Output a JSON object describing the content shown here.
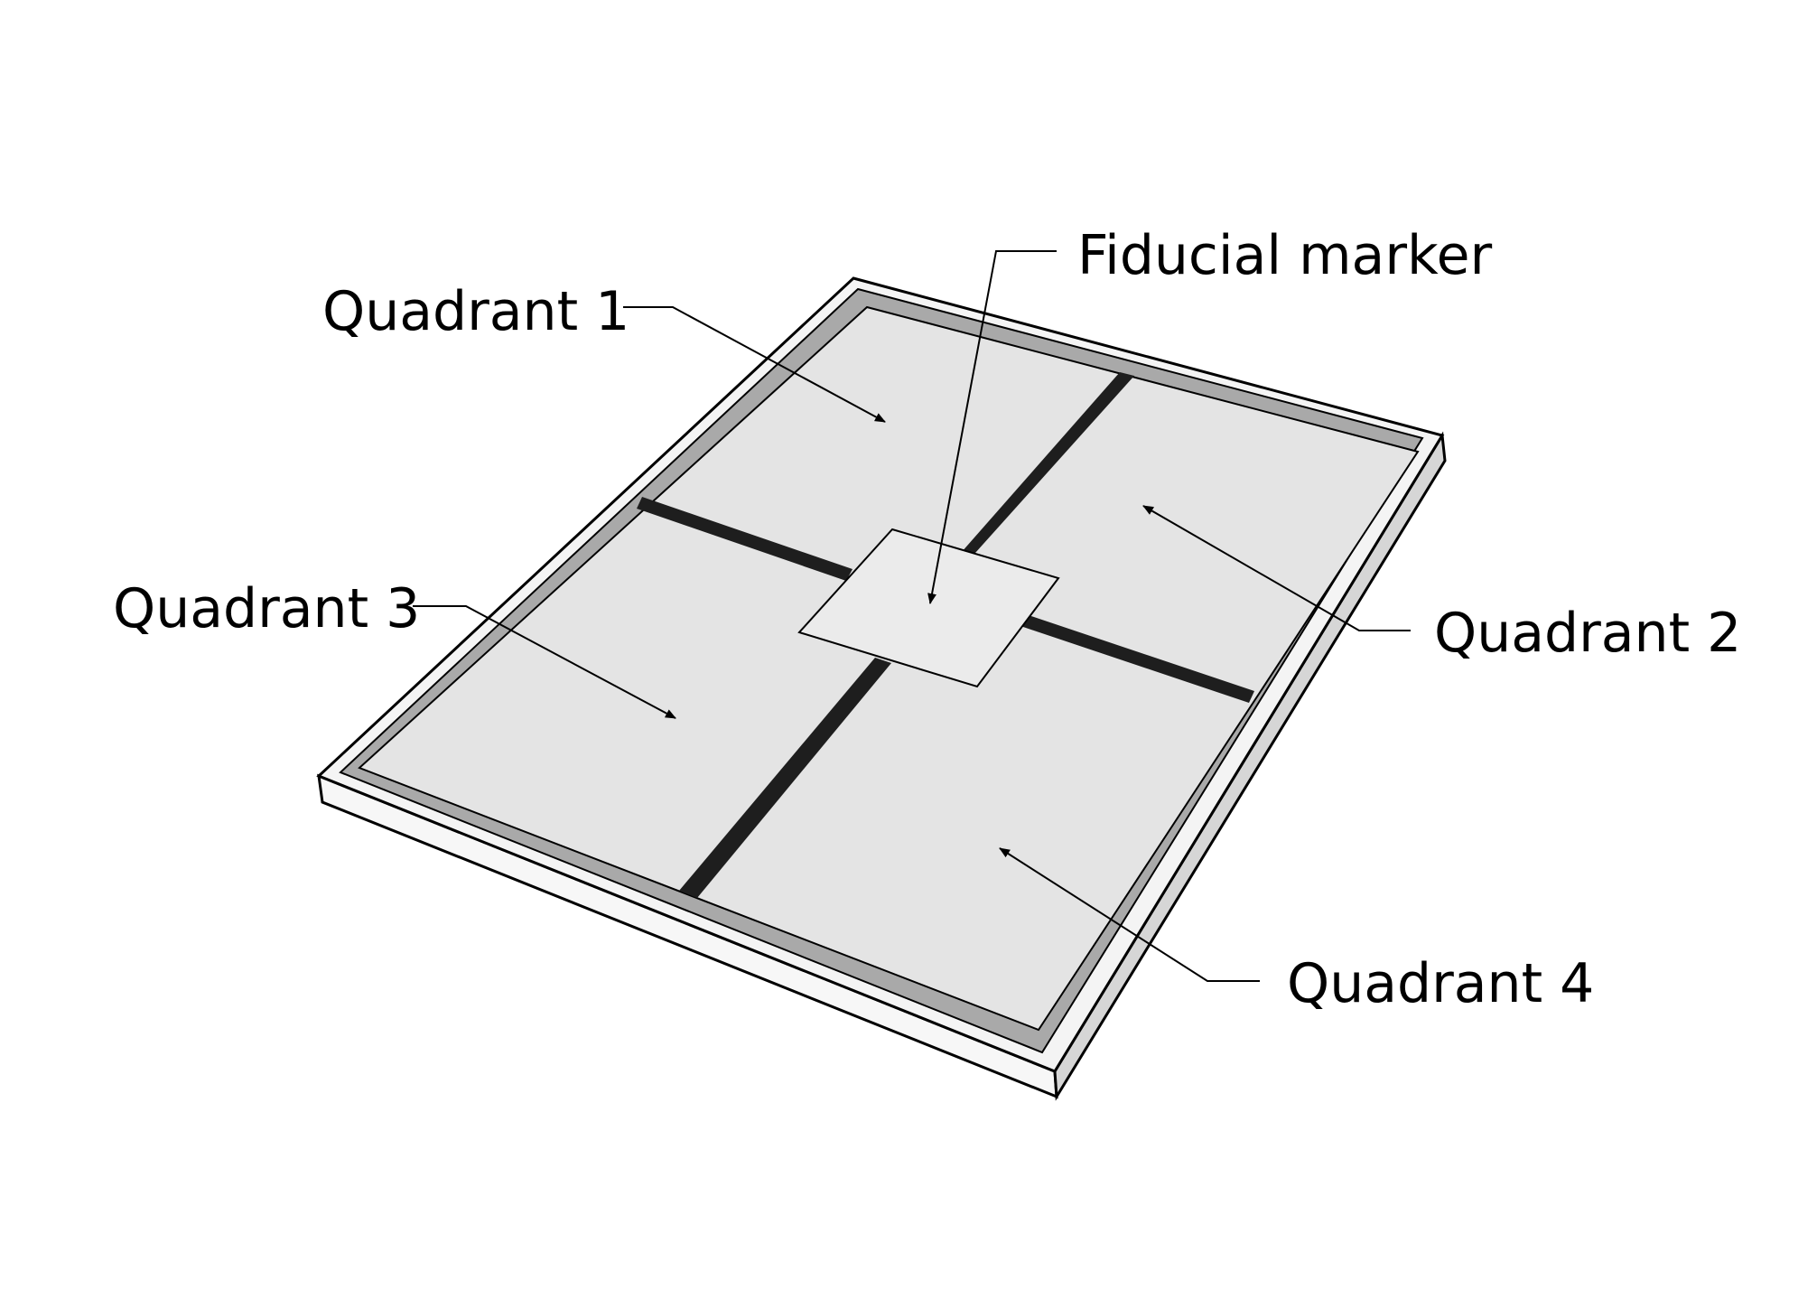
{
  "labels": {
    "fiducial_marker": "Fiducial marker",
    "quadrant_1": "Quadrant 1",
    "quadrant_2": "Quadrant 2",
    "quadrant_3": "Quadrant 3",
    "quadrant_4": "Quadrant 4"
  },
  "colors": {
    "background": "#ffffff",
    "tray_outer": "#f5f5f5",
    "tray_rim": "#cfcfcf",
    "tray_inner_wall": "#a8a8a8",
    "quadrant_fill": "#e4e4e4",
    "divider": "#1e1e1e",
    "marker_fill": "#ebebeb",
    "outline": "#000000"
  }
}
